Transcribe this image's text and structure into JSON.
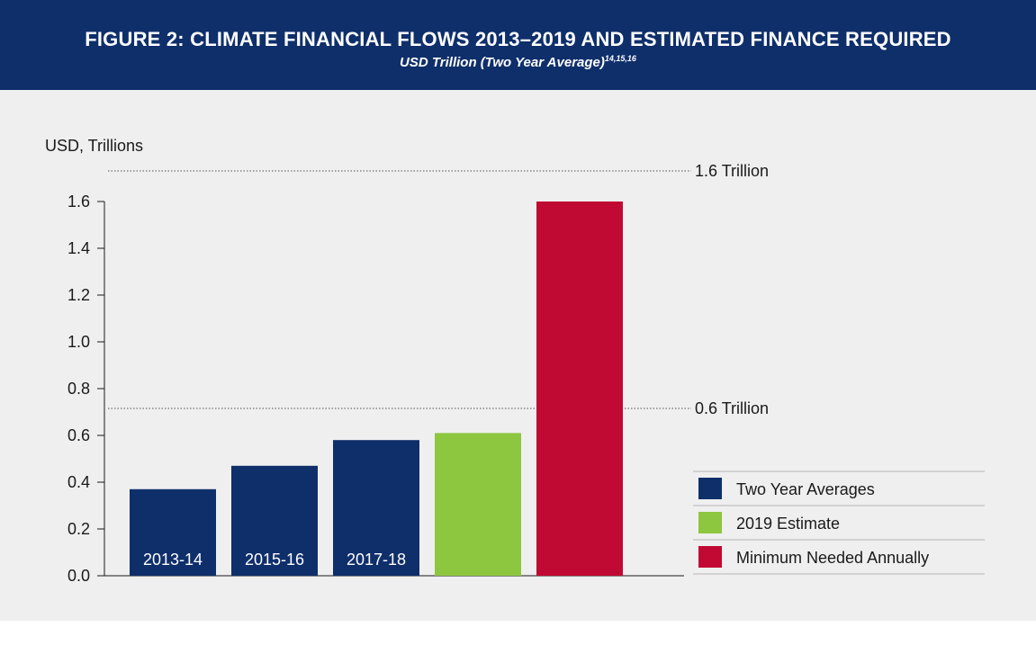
{
  "header": {
    "title": "FIGURE 2: CLIMATE FINANCIAL FLOWS 2013–2019 AND ESTIMATED FINANCE REQUIRED",
    "subtitle": "USD Trillion (Two Year Average)",
    "subtitle_refs": "14,15,16"
  },
  "chart_data": {
    "type": "bar",
    "title": "",
    "xlabel": "",
    "ylabel": "USD, Trillions",
    "ylim": [
      0,
      1.6
    ],
    "yticks": [
      0.0,
      0.2,
      0.4,
      0.6,
      0.8,
      1.0,
      1.2,
      1.4,
      1.6
    ],
    "ytick_labels": [
      "0.0",
      "0.2",
      "0.4",
      "0.6",
      "0.8",
      "1.0",
      "1.2",
      "1.4",
      "1.6"
    ],
    "categories": [
      "2013-14",
      "2015-16",
      "2017-18",
      "",
      ""
    ],
    "values": [
      0.37,
      0.47,
      0.58,
      0.61,
      1.6
    ],
    "bar_series": [
      "Two Year Averages",
      "Two Year Averages",
      "Two Year Averages",
      "2019 Estimate",
      "Minimum Needed Annually"
    ],
    "series": [
      {
        "name": "Two Year Averages",
        "color": "#0f2f6b"
      },
      {
        "name": "2019 Estimate",
        "color": "#8dc63f"
      },
      {
        "name": "Minimum Needed Annually",
        "color": "#c10a33"
      }
    ],
    "reference_lines": [
      {
        "label": "1.6 Trillion"
      },
      {
        "label": "0.6 Trillion"
      }
    ],
    "grid": false,
    "legend": "right"
  }
}
